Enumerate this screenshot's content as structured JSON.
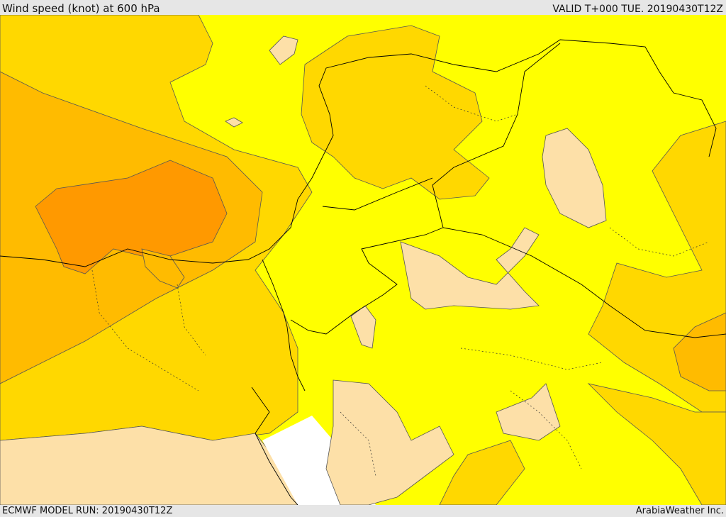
{
  "header": {
    "title": "Wind speed (knot) at 600 hPa",
    "valid_time": "VALID T+000 TUE. 20190430T12Z"
  },
  "footer": {
    "model_run": "ECMWF MODEL RUN: 20190430T12Z",
    "credit": "ArabiaWeather Inc."
  },
  "map": {
    "colors": {
      "calm": "#fde0a8",
      "light": "#ffff00",
      "moderate": "#ffd800",
      "strong": "#ffbb00",
      "very_strong": "#ff9900",
      "masked": "#ffffff",
      "contour": "#555555",
      "border": "#000000"
    }
  }
}
